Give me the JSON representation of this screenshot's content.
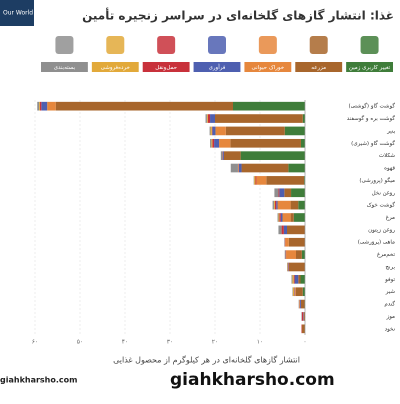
{
  "logo": "Our World in Data",
  "watermark": "giahkharsho.com",
  "chart_data": {
    "type": "bar",
    "orientation": "horizontal",
    "stacked": true,
    "title": "غذا: انتشار گازهای گلخانه‌ای در سراسر زنجیره تأمین",
    "x_label": "انتشار گازهای گلخانه‌ای در هر کیلوگرم از محصول غذایی",
    "categories": [
      "گوشت گاو (گوشتی)",
      "گوشت بره و گوسفند",
      "پنیر",
      "گوشت گاو (شیری)",
      "شکلات",
      "قهوه",
      "میگو (پرورشی)",
      "روغن نخل",
      "گوشت خوک",
      "مرغ",
      "روغن زیتون",
      "ماهی (پرورشی)",
      "تخم‌مرغ",
      "برنج",
      "توفو",
      "شیر",
      "گندم",
      "موز",
      "نخود"
    ],
    "series": [
      {
        "name": "تغییر کاربری زمین",
        "color": "#3f7d3a",
        "values": [
          16,
          0.5,
          4.5,
          0.9,
          14.3,
          3.7,
          0.2,
          3.1,
          1.5,
          2.5,
          0,
          0,
          0.7,
          0,
          1,
          0.5,
          0.1,
          0,
          0
        ]
      },
      {
        "name": "مزرعه",
        "color": "#a8662c",
        "values": [
          39.4,
          19.5,
          13.1,
          15.7,
          3.7,
          10.4,
          8.4,
          1.5,
          1.7,
          0.7,
          4,
          3.6,
          1.3,
          3.6,
          0.5,
          1.5,
          0.8,
          0.3,
          0.7
        ]
      },
      {
        "name": "خوراک حیوانی",
        "color": "#e6873d",
        "values": [
          1.9,
          0,
          2.3,
          2.5,
          0,
          0,
          2.2,
          0,
          2.9,
          1.8,
          0,
          0.8,
          2.2,
          0,
          0,
          0.2,
          0,
          0,
          0
        ]
      },
      {
        "name": "فرآوری",
        "color": "#4e5fb0",
        "values": [
          1.3,
          1.1,
          0.7,
          1.1,
          0.2,
          0.6,
          0,
          1.1,
          0.3,
          0.4,
          0.7,
          0,
          0,
          0.1,
          0.8,
          0.1,
          0.2,
          0.1,
          0
        ]
      },
      {
        "name": "حمل‌ونقل",
        "color": "#c8313b",
        "values": [
          0.3,
          0.5,
          0.1,
          0.4,
          0.1,
          0.1,
          0.2,
          0.2,
          0.3,
          0.3,
          0.5,
          0.1,
          0.1,
          0.1,
          0.2,
          0.1,
          0.1,
          0.3,
          0.1
        ]
      },
      {
        "name": "خرده‌فروشی",
        "color": "#e2a93a",
        "values": [
          0.2,
          0.2,
          0.3,
          0.2,
          0,
          0.1,
          0.3,
          0,
          0.2,
          0.2,
          0,
          0,
          0,
          0.1,
          0.3,
          0.3,
          0.1,
          0,
          0
        ]
      },
      {
        "name": "بسته‌بندی",
        "color": "#8f8f8f",
        "values": [
          0.4,
          0.3,
          0.2,
          0.3,
          0.4,
          1.6,
          0.1,
          0.9,
          0.3,
          0.2,
          0.7,
          0.1,
          0.2,
          0.1,
          0.2,
          0.1,
          0.1,
          0.1,
          0
        ]
      }
    ],
    "xlim": [
      0,
      60
    ],
    "xticks": [
      {
        "value": 0,
        "label": "۰"
      },
      {
        "value": 10,
        "label": "۱۰"
      },
      {
        "value": 20,
        "label": "۲۰"
      },
      {
        "value": 30,
        "label": "۳۰"
      },
      {
        "value": 40,
        "label": "۴۰"
      },
      {
        "value": 50,
        "label": "۵۰"
      },
      {
        "value": 60,
        "label": "۶۰"
      }
    ],
    "grid": true
  }
}
